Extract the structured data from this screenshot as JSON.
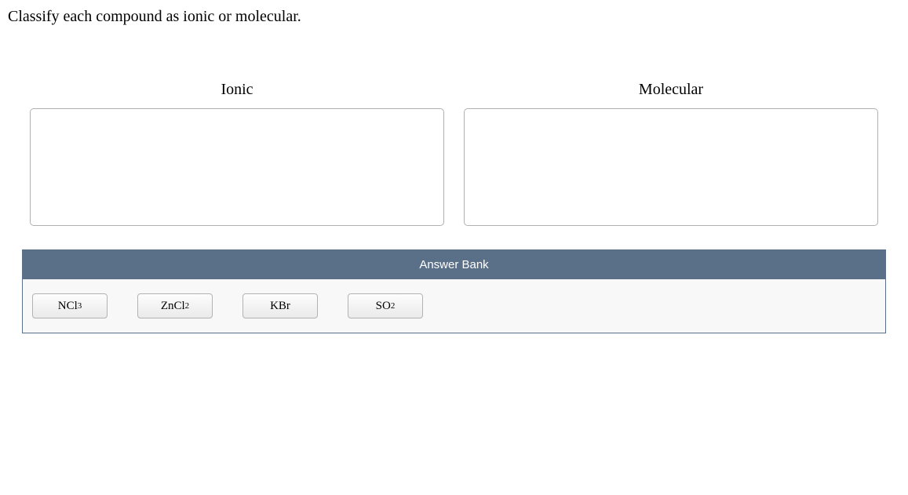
{
  "question": "Classify each compound as ionic or molecular.",
  "categories": {
    "left": {
      "label": "Ionic"
    },
    "right": {
      "label": "Molecular"
    }
  },
  "answer_bank": {
    "header": "Answer Bank",
    "items": [
      {
        "base": "NCl",
        "sub": "3"
      },
      {
        "base": "ZnCl",
        "sub": "2"
      },
      {
        "base": "KBr",
        "sub": ""
      },
      {
        "base": "SO",
        "sub": "2"
      }
    ]
  },
  "style": {
    "background_color": "#ffffff",
    "text_color": "#000000",
    "drop_border_color": "#b0b0b0",
    "bank_header_bg": "#5a6f88",
    "bank_header_text": "#ffffff",
    "bank_body_bg": "#f8f8f8",
    "chip_border": "#b3b3b3"
  }
}
